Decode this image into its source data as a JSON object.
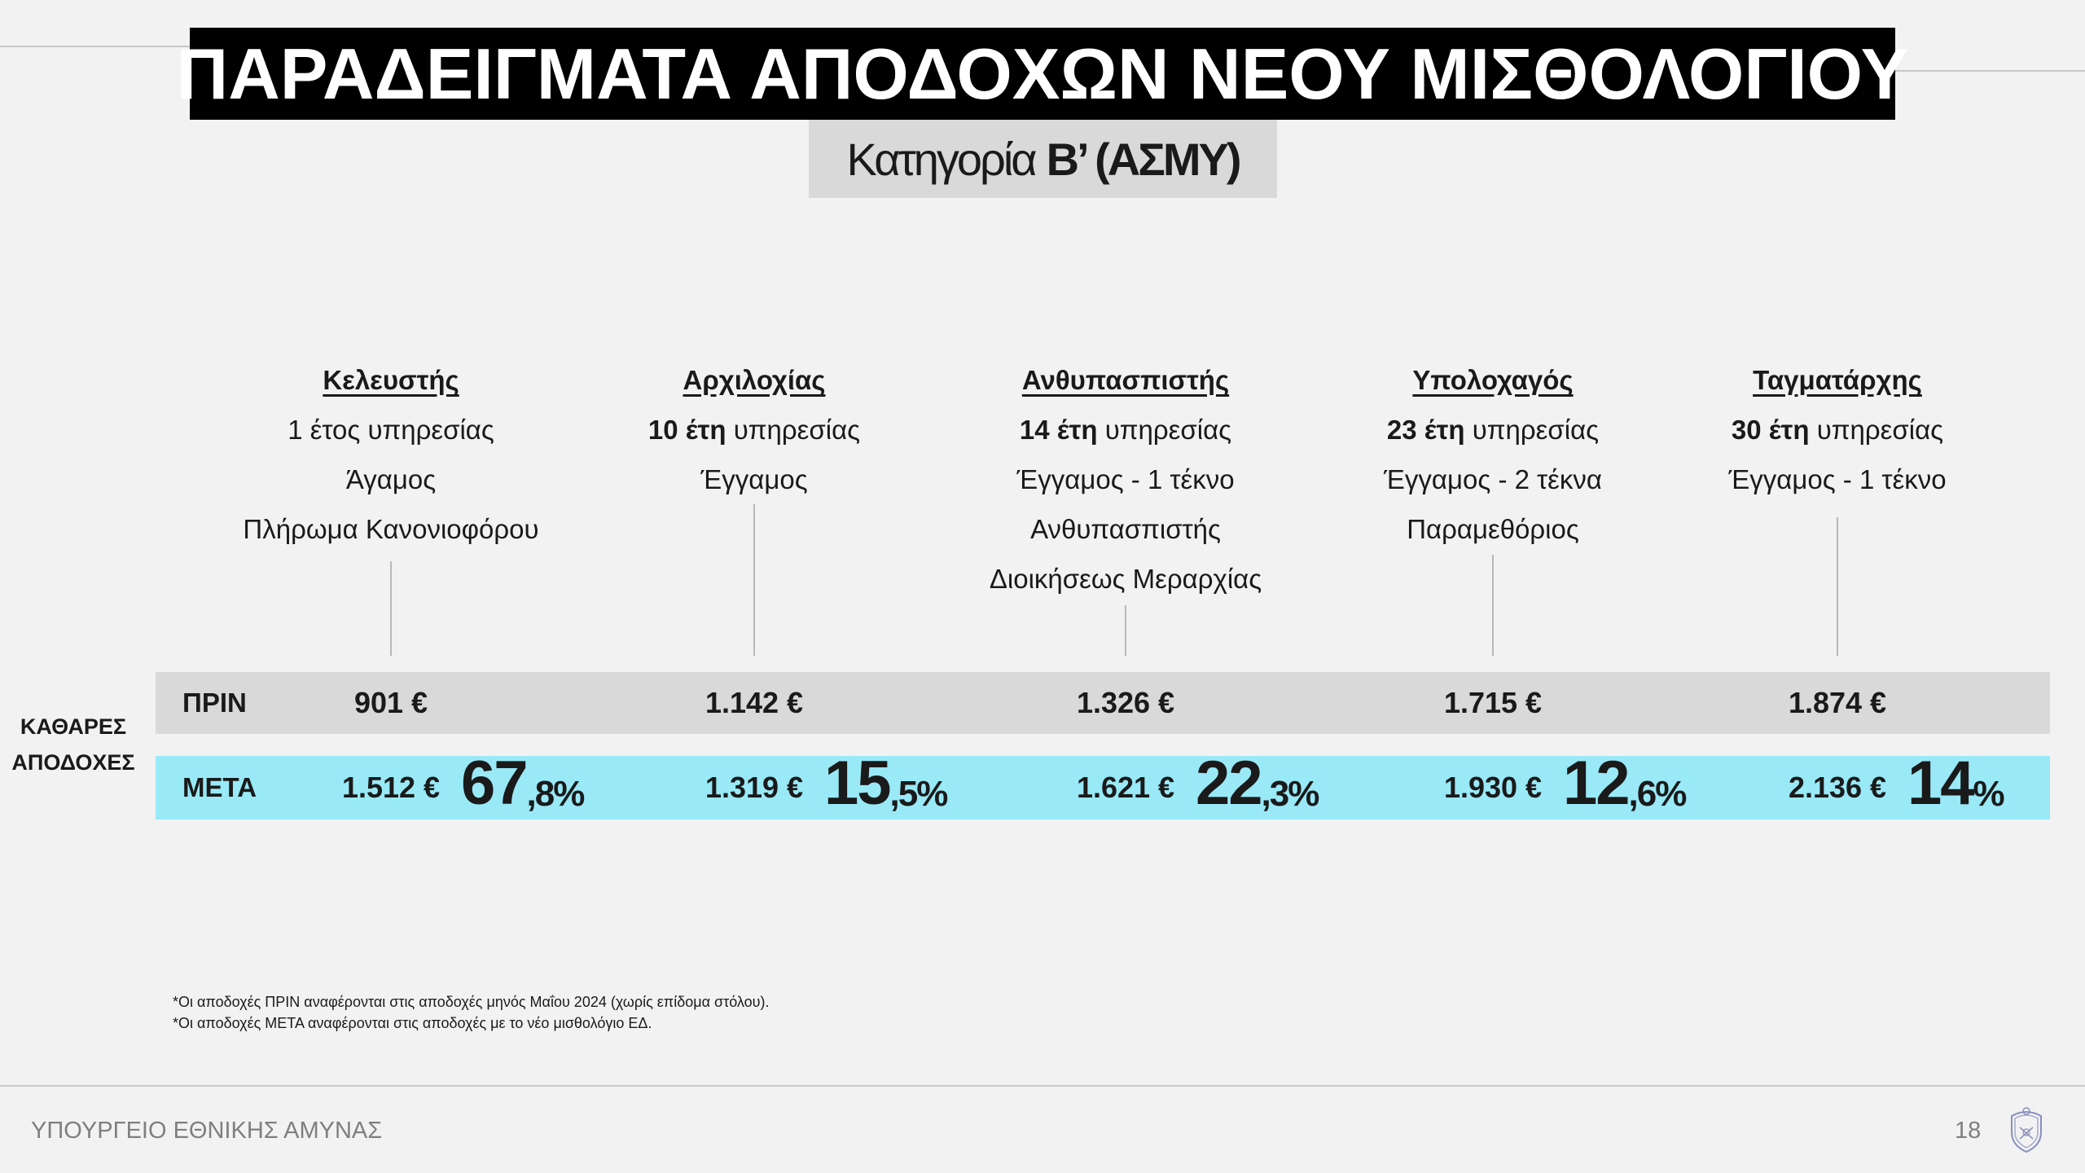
{
  "title": "ΠΑΡΑΔΕΙΓΜΑΤΑ ΑΠΟΔΟΧΩΝ ΝΕΟΥ ΜΙΣΘΟΛΟΓΙΟΥ",
  "subtitle": {
    "prefix": "Κατηγορία",
    "bold": "Β’  (ΑΣΜΥ)"
  },
  "columns": [
    {
      "rank": "Κελευστής",
      "years_bold": "",
      "years": "1 έτος υπηρεσίας",
      "lines": [
        "Άγαμος",
        "Πλήρωμα Κανονιοφόρου",
        ""
      ],
      "before": "901 €",
      "after": "1.512 €",
      "pct_int": "67",
      "pct_frac": ",8%"
    },
    {
      "rank": "Αρχιλοχίας",
      "years_bold": "10 έτη",
      "years": " υπηρεσίας",
      "lines": [
        "Έγγαμος",
        "",
        ""
      ],
      "before": "1.142 €",
      "after": "1.319 €",
      "pct_int": "15",
      "pct_frac": ",5%"
    },
    {
      "rank": "Ανθυπασπιστής",
      "years_bold": "14 έτη",
      "years": " υπηρεσίας",
      "lines": [
        "Έγγαμος - 1 τέκνο",
        "Ανθυπασπιστής",
        "Διοικήσεως Μεραρχίας"
      ],
      "before": "1.326 €",
      "after": "1.621 €",
      "pct_int": "22",
      "pct_frac": ",3%"
    },
    {
      "rank": "Υπολοχαγός",
      "years_bold": "23 έτη",
      "years": " υπηρεσίας",
      "lines": [
        "Έγγαμος - 2 τέκνα",
        "Παραμεθόριος",
        ""
      ],
      "before": "1.715 €",
      "after": "1.930 €",
      "pct_int": "12",
      "pct_frac": ",6%"
    },
    {
      "rank": "Ταγματάρχης",
      "years_bold": "30 έτη",
      "years": " υπηρεσίας",
      "lines": [
        "Έγγαμος - 1 τέκνο",
        "",
        ""
      ],
      "before": "1.874 €",
      "after": "2.136 €",
      "pct_int": "14",
      "pct_frac": "%"
    }
  ],
  "side_label": [
    "ΚΑΘΑΡΕΣ",
    "ΑΠΟΔΟΧΕΣ"
  ],
  "rows": {
    "before_label": "ΠΡΙΝ",
    "after_label": "ΜΕΤΑ"
  },
  "colors": {
    "before_row": "#d9d9d9",
    "after_row": "#99e9f7",
    "title_bg": "#000000"
  },
  "footnotes": [
    "*Οι αποδοχές ΠΡΙΝ αναφέρονται στις αποδοχές μηνός Μαΐου 2024 (χωρίς επίδομα στόλου).",
    "*Οι αποδοχές ΜΕΤΑ αναφέρονται στις αποδοχές με το νέο μισθολόγιο ΕΔ."
  ],
  "footer": {
    "organization": "ΥΠΟΥΡΓΕΙΟ ΕΘΝΙΚΗΣ ΑΜΥΝΑΣ",
    "page": "18",
    "logo_icon": "ministry-crest-icon"
  }
}
